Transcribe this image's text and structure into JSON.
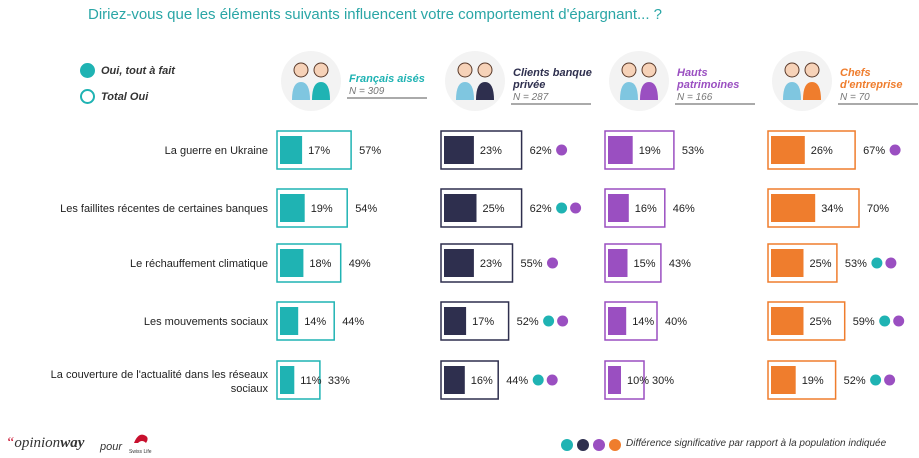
{
  "title": "Diriez-vous que les éléments suivants influencent votre comportement d'épargnant... ?",
  "legend": {
    "filled_label": "Oui, tout à fait",
    "outline_label": "Total Oui"
  },
  "footer": {
    "note": "Différence significative par rapport à la population indiquée",
    "brand_prefix": "“",
    "brand_opinion": "opinion",
    "brand_way": "way",
    "brand_pour": "pour",
    "partner_logo_text": "Swiss Life"
  },
  "colors": {
    "title": "#2aa6a6",
    "teal": "#1fb3b3",
    "navy": "#2e2f4e",
    "purple": "#9a4fc1",
    "orange": "#ef7d2d"
  },
  "chart_data": {
    "type": "bar",
    "orientation": "horizontal",
    "categories": [
      "La guerre en Ukraine",
      "Les faillites récentes de certaines banques",
      "Le réchauffement climatique",
      "Les mouvements sociaux",
      "La couverture de l'actualité dans les réseaux sociaux"
    ],
    "series": [
      {
        "name": "Français aisés",
        "n_label": "N = 309",
        "color": "#1fb3b3",
        "tout_a_fait": [
          17,
          19,
          18,
          14,
          11
        ],
        "total_oui": [
          57,
          54,
          49,
          44,
          33
        ],
        "sig": [
          [],
          [],
          [],
          [],
          []
        ]
      },
      {
        "name": "Clients banque privée",
        "n_label": "N = 287",
        "color": "#2e2f4e",
        "tout_a_fait": [
          23,
          25,
          23,
          17,
          16
        ],
        "total_oui": [
          62,
          62,
          55,
          52,
          44
        ],
        "sig": [
          [
            "purple"
          ],
          [
            "teal",
            "purple"
          ],
          [
            "purple"
          ],
          [
            "teal",
            "purple"
          ],
          [
            "teal",
            "purple"
          ]
        ]
      },
      {
        "name": "Hauts patrimoines",
        "n_label": "N = 166",
        "color": "#9a4fc1",
        "tout_a_fait": [
          19,
          16,
          15,
          14,
          10
        ],
        "total_oui": [
          53,
          46,
          43,
          40,
          30
        ],
        "sig": [
          [],
          [],
          [],
          [],
          []
        ]
      },
      {
        "name": "Chefs d'entreprise",
        "n_label": "N = 70",
        "color": "#ef7d2d",
        "tout_a_fait": [
          26,
          34,
          25,
          25,
          19
        ],
        "total_oui": [
          67,
          70,
          53,
          59,
          52
        ],
        "sig": [
          [
            "purple"
          ],
          [],
          [
            "teal",
            "purple"
          ],
          [
            "teal",
            "purple"
          ],
          [
            "teal",
            "purple"
          ]
        ]
      }
    ],
    "significance_legend": [
      "teal",
      "navy",
      "purple",
      "orange"
    ]
  }
}
